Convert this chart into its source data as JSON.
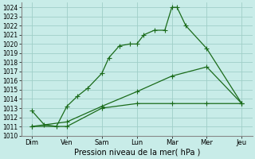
{
  "xlabel": "Pression niveau de la mer( hPa )",
  "ylim": [
    1010,
    1024.5
  ],
  "yticks": [
    1010,
    1011,
    1012,
    1013,
    1014,
    1015,
    1016,
    1017,
    1018,
    1019,
    1020,
    1021,
    1022,
    1023,
    1024
  ],
  "xtick_labels": [
    "Dim",
    "Ven",
    "Sam",
    "Lun",
    "Mar",
    "Mer",
    "Jeu"
  ],
  "background_color": "#c8ece8",
  "grid_color": "#a0cfc8",
  "line_color": "#1a6b1a",
  "s1_x": [
    0,
    0.35,
    0.7,
    1.0,
    1.3,
    1.6,
    2.0,
    2.2,
    2.5,
    2.8,
    3.0,
    3.2,
    3.5,
    3.8,
    4.0,
    4.15,
    4.4,
    5.0,
    6.0
  ],
  "s1_y": [
    1012.7,
    1011.2,
    1011.0,
    1013.2,
    1014.3,
    1015.2,
    1016.8,
    1018.5,
    1019.8,
    1020.0,
    1020.0,
    1021.0,
    1021.5,
    1021.5,
    1024.0,
    1024.0,
    1022.0,
    1019.5,
    1013.5
  ],
  "s2_x": [
    0,
    1,
    2,
    3,
    4,
    5,
    6
  ],
  "s2_y": [
    1011.0,
    1011.0,
    1013.0,
    1013.5,
    1013.5,
    1013.5,
    1013.5
  ],
  "s3_x": [
    0,
    1,
    2,
    3,
    4,
    5,
    6
  ],
  "s3_y": [
    1011.0,
    1011.5,
    1013.2,
    1014.8,
    1016.5,
    1017.5,
    1013.5
  ]
}
